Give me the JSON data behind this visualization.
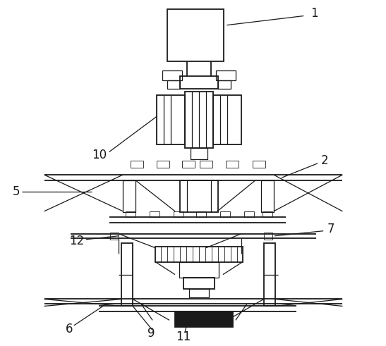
{
  "bg_color": "#ffffff",
  "line_color": "#1a1a1a",
  "lw_main": 1.3,
  "lw_med": 0.9,
  "lw_thin": 0.6,
  "fig_width": 5.47,
  "fig_height": 4.91
}
